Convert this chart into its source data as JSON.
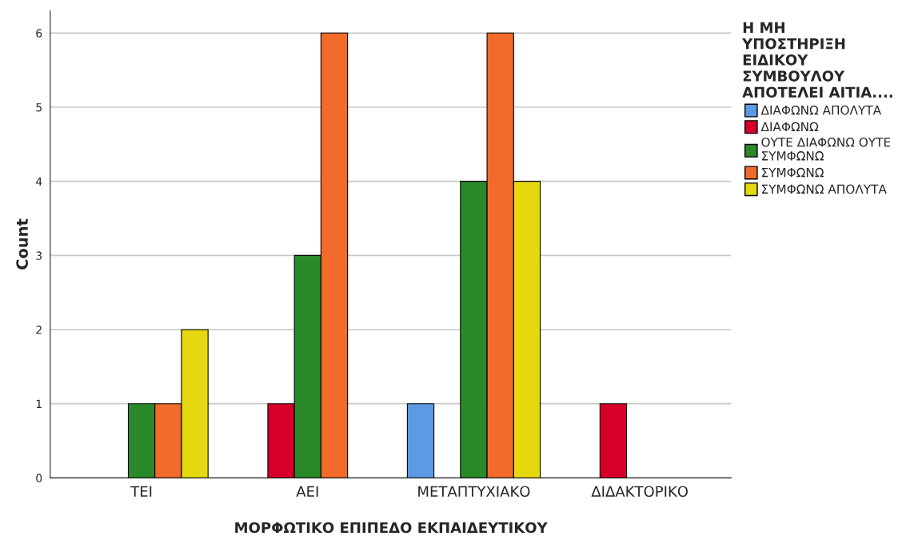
{
  "chart_data": {
    "type": "bar",
    "xlabel": "ΜΟΡΦΩΤΙΚΟ ΕΠΙΠΕΔΟ ΕΚΠΑΙΔΕΥΤΙΚΟΥ",
    "ylabel": "Count",
    "legend_title": "Η ΜΗ\nΥΠΟΣΤΗΡΙΞΗ\nΕΙΔΙΚΟΥ\nΣΥΜΒΟΥΛΟΥ\nΑΠΟΤΕΛΕΙ ΑΙΤΙΑ....",
    "categories": [
      "ΤΕΙ",
      "ΑΕΙ",
      "ΜΕΤΑΠΤΥΧΙΑΚΟ",
      "ΔΙΔΑΚΤΟΡΙΚΟ"
    ],
    "series": [
      {
        "name": "ΔΙΑΦΩΝΩ ΑΠΟΛΥΤΑ",
        "color": "#5b9be6",
        "values": [
          null,
          null,
          1,
          null
        ]
      },
      {
        "name": "ΔΙΑΦΩΝΩ",
        "color": "#d6002b",
        "values": [
          null,
          1,
          null,
          1
        ]
      },
      {
        "name": "ΟΥΤΕ ΔΙΑΦΩΝΩ ΟΥΤΕ\nΣΥΜΦΩΝΩ",
        "color": "#2a8a2a",
        "values": [
          1,
          3,
          4,
          null
        ]
      },
      {
        "name": "ΣΥΜΦΩΝΩ",
        "color": "#f26b2a",
        "values": [
          1,
          6,
          6,
          null
        ]
      },
      {
        "name": "ΣΥΜΦΩΝΩ ΑΠΟΛΥΤΑ",
        "color": "#e6d80f",
        "values": [
          2,
          null,
          4,
          null
        ]
      }
    ],
    "ylim": [
      0,
      6.3
    ],
    "yticks": [
      0,
      1,
      2,
      3,
      4,
      5,
      6
    ],
    "grid": "y",
    "legend": "right"
  }
}
